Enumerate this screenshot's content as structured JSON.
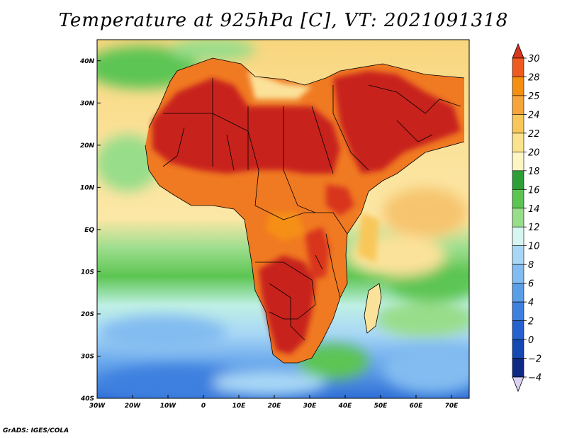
{
  "title": "Temperature at 925hPa [C], VT: 2021091318",
  "credit": "GrADS: IGES/COLA",
  "map": {
    "lon_range": [
      -30,
      75
    ],
    "lat_range": [
      -40,
      45
    ],
    "lon_ticks": [
      {
        "value": -30,
        "label": "30W"
      },
      {
        "value": -20,
        "label": "20W"
      },
      {
        "value": -10,
        "label": "10W"
      },
      {
        "value": 0,
        "label": "0"
      },
      {
        "value": 10,
        "label": "10E"
      },
      {
        "value": 20,
        "label": "20E"
      },
      {
        "value": 30,
        "label": "30E"
      },
      {
        "value": 40,
        "label": "40E"
      },
      {
        "value": 50,
        "label": "50E"
      },
      {
        "value": 60,
        "label": "60E"
      },
      {
        "value": 70,
        "label": "70E"
      }
    ],
    "lat_ticks": [
      {
        "value": 40,
        "label": "40N"
      },
      {
        "value": 30,
        "label": "30N"
      },
      {
        "value": 20,
        "label": "20N"
      },
      {
        "value": 10,
        "label": "10N"
      },
      {
        "value": 0,
        "label": "EQ"
      },
      {
        "value": -10,
        "label": "10S"
      },
      {
        "value": -20,
        "label": "20S"
      },
      {
        "value": -30,
        "label": "30S"
      },
      {
        "value": -40,
        "label": "40S"
      }
    ]
  },
  "colorbar": {
    "labels": [
      "30",
      "28",
      "25",
      "24",
      "22",
      "20",
      "18",
      "16",
      "14",
      "12",
      "10",
      "8",
      "6",
      "4",
      "2",
      "0",
      "−2",
      "−4"
    ],
    "colors": [
      "#d8361e",
      "#ef5a20",
      "#f58f12",
      "#f5a53a",
      "#f8c75a",
      "#fbe28c",
      "#fdf6c2",
      "#2e9f36",
      "#5cc552",
      "#98dd8a",
      "#d6f6f1",
      "#a8d7f6",
      "#82bcf0",
      "#5a9ee8",
      "#3e80df",
      "#2662cf",
      "#1448b3",
      "#0e2a84",
      "#dcd3f3"
    ]
  },
  "colors": {
    "land_hot": "#c8231a",
    "land_warm": "#ef6a20",
    "ocean_warm": "#fbe5a0",
    "ocean_mid": "#f6c46e",
    "ocean_cool": "#5cc552",
    "ocean_cold": "#82bcf0",
    "ocean_coldest": "#2f6fd6"
  }
}
